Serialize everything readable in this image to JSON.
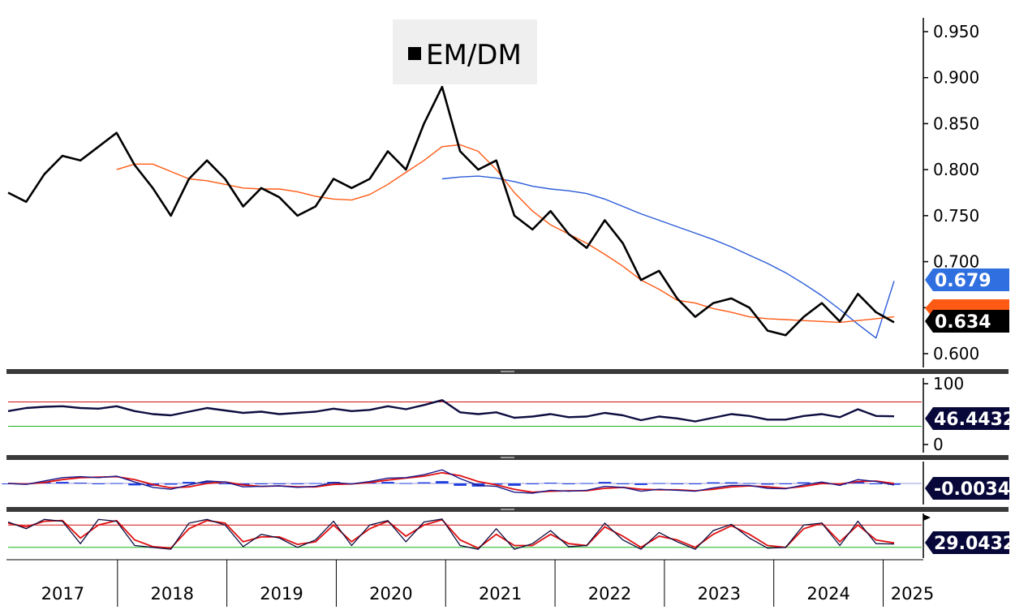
{
  "colors": {
    "price_line": "#000000",
    "ma_short": "#ff5a14",
    "ma_long": "#2a5bd7",
    "rsi_line": "#0d0d40",
    "upper_band": "#d01010",
    "lower_band": "#18b418",
    "macd_line": "#1a1a8c",
    "macd_signal": "#e01010",
    "macd_hist": "#1f3fe0",
    "stoch_k": "#0d0d40",
    "stoch_d": "#e01010",
    "separator": "#3a3a3a",
    "badge_dark": "#000000",
    "badge_navy": "#07073a",
    "badge_blue": "#2f6fe0"
  },
  "legend": {
    "label": "EM/DM",
    "marker_icon": "square-icon"
  },
  "badges": {
    "ma_long_value": "0.679",
    "price_value": "0.634",
    "rsi_value": "46.4432",
    "macd_value": "-0.0034",
    "stoch_value": "29.0432"
  },
  "x_axis": {
    "years": [
      "2017",
      "2018",
      "2019",
      "2020",
      "2021",
      "2022",
      "2023",
      "2024",
      "2025"
    ]
  },
  "chart_data": [
    {
      "type": "line",
      "panel": "price",
      "title": "",
      "legend": [
        "EM/DM"
      ],
      "ylim": [
        0.585,
        0.965
      ],
      "yticks": [
        "0.950",
        "0.900",
        "0.850",
        "0.800",
        "0.750",
        "0.700",
        "0.650",
        "0.600"
      ],
      "grid": false,
      "x": [
        "2017-01",
        "2017-03",
        "2017-05",
        "2017-07",
        "2017-09",
        "2017-11",
        "2018-01",
        "2018-03",
        "2018-05",
        "2018-07",
        "2018-09",
        "2018-11",
        "2019-01",
        "2019-03",
        "2019-05",
        "2019-07",
        "2019-09",
        "2019-11",
        "2020-01",
        "2020-03",
        "2020-05",
        "2020-07",
        "2020-09",
        "2020-11",
        "2021-01",
        "2021-03",
        "2021-05",
        "2021-07",
        "2021-09",
        "2021-11",
        "2022-01",
        "2022-03",
        "2022-05",
        "2022-07",
        "2022-09",
        "2022-11",
        "2023-01",
        "2023-03",
        "2023-05",
        "2023-07",
        "2023-09",
        "2023-11",
        "2024-01",
        "2024-03",
        "2024-05",
        "2024-07",
        "2024-09",
        "2024-11",
        "2025-01",
        "2025-02"
      ],
      "series": [
        {
          "name": "EM/DM",
          "values": [
            0.775,
            0.765,
            0.795,
            0.815,
            0.81,
            0.825,
            0.84,
            0.805,
            0.78,
            0.75,
            0.79,
            0.81,
            0.79,
            0.76,
            0.78,
            0.77,
            0.75,
            0.76,
            0.79,
            0.78,
            0.79,
            0.82,
            0.8,
            0.85,
            0.89,
            0.82,
            0.8,
            0.81,
            0.75,
            0.735,
            0.755,
            0.73,
            0.715,
            0.745,
            0.72,
            0.68,
            0.69,
            0.66,
            0.64,
            0.655,
            0.66,
            0.65,
            0.625,
            0.62,
            0.64,
            0.655,
            0.635,
            0.665,
            0.645,
            0.634
          ]
        },
        {
          "name": "",
          "values": [
            null,
            null,
            null,
            null,
            null,
            null,
            0.8,
            0.806,
            0.806,
            0.798,
            0.79,
            0.788,
            0.784,
            0.78,
            0.779,
            0.779,
            0.776,
            0.771,
            0.768,
            0.767,
            0.773,
            0.784,
            0.797,
            0.81,
            0.825,
            0.827,
            0.82,
            0.8,
            0.775,
            0.755,
            0.74,
            0.73,
            0.72,
            0.708,
            0.695,
            0.68,
            0.67,
            0.658,
            0.655,
            0.649,
            0.645,
            0.64,
            0.638,
            0.637,
            0.636,
            0.635,
            0.634,
            0.636,
            0.638,
            0.64
          ]
        },
        {
          "name": "",
          "values": [
            null,
            null,
            null,
            null,
            null,
            null,
            null,
            null,
            null,
            null,
            null,
            null,
            null,
            null,
            null,
            null,
            null,
            null,
            null,
            null,
            null,
            null,
            null,
            null,
            0.79,
            0.792,
            0.793,
            0.791,
            0.787,
            0.782,
            0.779,
            0.777,
            0.774,
            0.768,
            0.76,
            0.752,
            0.745,
            0.738,
            0.731,
            0.724,
            0.716,
            0.707,
            0.698,
            0.688,
            0.676,
            0.663,
            0.648,
            0.632,
            0.617,
            0.679
          ]
        }
      ]
    },
    {
      "type": "line",
      "panel": "rsi",
      "title": "",
      "ylim": [
        0,
        100
      ],
      "yticks": [
        "100",
        "0"
      ],
      "bands": [
        70,
        30
      ],
      "series": [
        {
          "name": "",
          "values": [
            55,
            60,
            62,
            63,
            60,
            59,
            63,
            55,
            50,
            48,
            54,
            60,
            56,
            52,
            54,
            50,
            52,
            54,
            59,
            55,
            57,
            63,
            58,
            65,
            73,
            53,
            50,
            53,
            44,
            46,
            50,
            45,
            46,
            52,
            48,
            40,
            46,
            43,
            38,
            44,
            50,
            47,
            41,
            41,
            47,
            50,
            45,
            58,
            47,
            46.4432
          ]
        }
      ]
    },
    {
      "type": "line",
      "panel": "macd",
      "title": "",
      "ylim": [
        -0.04,
        0.04
      ],
      "series": [
        {
          "name": "",
          "values": [
            0.0,
            -0.002,
            0.005,
            0.012,
            0.014,
            0.012,
            0.015,
            0.003,
            -0.008,
            -0.012,
            -0.003,
            0.005,
            0.003,
            -0.007,
            -0.006,
            -0.005,
            -0.008,
            -0.006,
            0.002,
            -0.001,
            0.004,
            0.011,
            0.012,
            0.018,
            0.028,
            0.01,
            -0.004,
            -0.006,
            -0.018,
            -0.02,
            -0.014,
            -0.016,
            -0.014,
            -0.006,
            -0.008,
            -0.016,
            -0.012,
            -0.014,
            -0.016,
            -0.009,
            -0.004,
            -0.004,
            -0.01,
            -0.011,
            -0.003,
            0.003,
            -0.004,
            0.008,
            0.004,
            -0.0034
          ]
        },
        {
          "name": "",
          "values": [
            0.0,
            -0.001,
            0.002,
            0.008,
            0.012,
            0.013,
            0.014,
            0.008,
            -0.002,
            -0.009,
            -0.007,
            0.0,
            0.003,
            -0.003,
            -0.006,
            -0.005,
            -0.007,
            -0.007,
            -0.002,
            -0.001,
            0.002,
            0.007,
            0.011,
            0.015,
            0.022,
            0.016,
            0.004,
            -0.003,
            -0.012,
            -0.018,
            -0.016,
            -0.015,
            -0.015,
            -0.01,
            -0.008,
            -0.012,
            -0.013,
            -0.013,
            -0.015,
            -0.012,
            -0.007,
            -0.005,
            -0.007,
            -0.01,
            -0.006,
            0.0,
            -0.001,
            0.004,
            0.005,
            0.0
          ]
        }
      ]
    },
    {
      "type": "line",
      "panel": "stochastic",
      "title": "",
      "ylim": [
        0,
        100
      ],
      "bands": [
        80,
        20
      ],
      "series": [
        {
          "name": "",
          "values": [
            88,
            70,
            95,
            90,
            30,
            95,
            90,
            25,
            20,
            15,
            85,
            95,
            80,
            22,
            55,
            45,
            20,
            40,
            90,
            25,
            80,
            92,
            35,
            88,
            96,
            25,
            15,
            70,
            15,
            30,
            65,
            22,
            25,
            85,
            40,
            15,
            60,
            35,
            15,
            65,
            82,
            45,
            18,
            20,
            80,
            85,
            25,
            90,
            30,
            29.0432
          ]
        },
        {
          "name": "",
          "values": [
            85,
            75,
            90,
            92,
            45,
            80,
            92,
            40,
            22,
            18,
            70,
            92,
            85,
            35,
            48,
            48,
            28,
            35,
            80,
            35,
            70,
            90,
            50,
            80,
            94,
            40,
            18,
            55,
            25,
            25,
            55,
            30,
            25,
            75,
            50,
            20,
            50,
            40,
            20,
            55,
            78,
            55,
            25,
            20,
            70,
            85,
            35,
            80,
            40,
            32
          ]
        }
      ]
    }
  ]
}
